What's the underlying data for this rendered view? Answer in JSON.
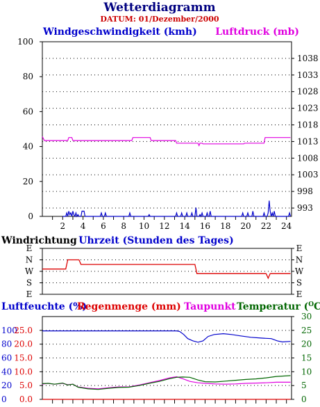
{
  "header": {
    "title": "Wetterdiagramm",
    "datum": "DATUM: 01/Dezember/2000"
  },
  "colors": {
    "title": "#000080",
    "datum": "#cc0000",
    "wind": "#0000cc",
    "pressure": "#e000e0",
    "direction": "#dd0000",
    "humidity": "#0000cc",
    "rain": "#dd0000",
    "dewpoint": "#e000e0",
    "temperature": "#006600"
  },
  "chart_data": [
    {
      "type": "line",
      "labels": {
        "left": "Windgeschwindigkeit (kmh)",
        "right": "Luftdruck (mb)"
      },
      "x_ticks": [
        "2",
        "4",
        "6",
        "8",
        "10",
        "12",
        "14",
        "16",
        "18",
        "20",
        "22",
        "24"
      ],
      "xlim": [
        0,
        24.5
      ],
      "ylim_left": [
        0,
        100
      ],
      "y_ticks_left": [
        "0",
        "20",
        "40",
        "60",
        "80",
        "100"
      ],
      "ylim_right": [
        990.5,
        1043
      ],
      "y_ticks_right": [
        "993",
        "998",
        "1003",
        "1008",
        "1013",
        "1018",
        "1023",
        "1028",
        "1033",
        "1038"
      ],
      "series": [
        {
          "name": "Windgeschwindigkeit",
          "axis": "left",
          "points": [
            [
              2,
              0
            ],
            [
              2.3,
              0
            ],
            [
              2.4,
              2
            ],
            [
              2.5,
              0
            ],
            [
              2.6,
              3
            ],
            [
              2.7,
              1
            ],
            [
              2.8,
              2
            ],
            [
              2.9,
              0
            ],
            [
              3.0,
              3
            ],
            [
              3.1,
              1
            ],
            [
              3.2,
              0
            ],
            [
              3.3,
              2
            ],
            [
              3.4,
              0
            ],
            [
              3.5,
              1
            ],
            [
              3.6,
              0
            ],
            [
              3.8,
              0
            ],
            [
              3.9,
              3
            ],
            [
              4.0,
              3
            ],
            [
              4.1,
              3
            ],
            [
              4.2,
              0
            ],
            [
              5.7,
              0
            ],
            [
              5.8,
              2
            ],
            [
              5.9,
              0
            ],
            [
              6.1,
              0
            ],
            [
              6.2,
              2
            ],
            [
              6.3,
              0
            ],
            [
              8.5,
              0
            ],
            [
              8.6,
              2
            ],
            [
              8.7,
              0
            ],
            [
              10.4,
              0
            ],
            [
              10.5,
              1
            ],
            [
              10.6,
              0
            ],
            [
              13.1,
              0
            ],
            [
              13.2,
              2
            ],
            [
              13.3,
              0
            ],
            [
              13.6,
              0
            ],
            [
              13.7,
              2
            ],
            [
              13.8,
              0
            ],
            [
              14.1,
              0
            ],
            [
              14.2,
              2
            ],
            [
              14.3,
              0
            ],
            [
              14.6,
              0
            ],
            [
              14.7,
              2
            ],
            [
              14.8,
              0
            ],
            [
              15.0,
              0
            ],
            [
              15.1,
              5
            ],
            [
              15.2,
              0
            ],
            [
              15.4,
              0
            ],
            [
              15.5,
              1
            ],
            [
              15.6,
              0
            ],
            [
              15.7,
              2
            ],
            [
              15.8,
              0
            ],
            [
              16.1,
              0
            ],
            [
              16.2,
              2
            ],
            [
              16.3,
              0
            ],
            [
              16.4,
              0
            ],
            [
              16.5,
              3
            ],
            [
              16.6,
              0
            ],
            [
              19.6,
              0
            ],
            [
              19.7,
              2
            ],
            [
              19.8,
              0
            ],
            [
              20.1,
              0
            ],
            [
              20.2,
              2
            ],
            [
              20.3,
              0
            ],
            [
              20.6,
              0
            ],
            [
              20.7,
              3
            ],
            [
              20.8,
              0
            ],
            [
              21.7,
              0
            ],
            [
              21.8,
              2
            ],
            [
              21.9,
              0
            ],
            [
              22.1,
              0
            ],
            [
              22.2,
              2
            ],
            [
              22.3,
              9
            ],
            [
              22.4,
              3
            ],
            [
              22.5,
              0
            ],
            [
              22.6,
              2
            ],
            [
              22.7,
              0
            ],
            [
              22.8,
              3
            ],
            [
              22.9,
              0
            ],
            [
              24.2,
              0
            ],
            [
              24.3,
              2
            ],
            [
              24.4,
              0
            ]
          ]
        },
        {
          "name": "Luftdruck",
          "axis": "right",
          "points": [
            [
              0,
              1014.5
            ],
            [
              0.2,
              1013.3
            ],
            [
              2.5,
              1013.3
            ],
            [
              2.6,
              1014.2
            ],
            [
              2.9,
              1014.2
            ],
            [
              3.0,
              1013.3
            ],
            [
              8.8,
              1013.3
            ],
            [
              8.9,
              1014.2
            ],
            [
              10.6,
              1014.2
            ],
            [
              10.7,
              1013.3
            ],
            [
              13.1,
              1013.3
            ],
            [
              13.2,
              1012.5
            ],
            [
              15.3,
              1012.5
            ],
            [
              15.4,
              1011.8
            ],
            [
              15.5,
              1012.5
            ],
            [
              15.7,
              1012.5
            ],
            [
              15.8,
              1012.3
            ],
            [
              19.8,
              1012.3
            ],
            [
              19.9,
              1012.5
            ],
            [
              21.8,
              1012.5
            ],
            [
              21.9,
              1014.2
            ],
            [
              24.4,
              1014.2
            ]
          ]
        }
      ]
    },
    {
      "type": "line",
      "labels": {
        "left": "Windrichtung",
        "center": "Uhrzeit (Stunden des Tages)"
      },
      "direction_labels": [
        "E",
        "N",
        "W",
        "S",
        "E"
      ],
      "series": [
        {
          "name": "Windrichtung",
          "points": [
            [
              0,
              2.2
            ],
            [
              2.3,
              2.2
            ],
            [
              2.5,
              3
            ],
            [
              3.6,
              3
            ],
            [
              3.8,
              2.6
            ],
            [
              15.0,
              2.6
            ],
            [
              15.2,
              1.8
            ],
            [
              22.0,
              1.8
            ],
            [
              22.2,
              1.4
            ],
            [
              22.4,
              1.8
            ],
            [
              24.4,
              1.8
            ]
          ]
        }
      ]
    },
    {
      "type": "line",
      "labels": {
        "humidity": "Luftfeuchte (%)",
        "rain": "Regenmenge (mm)",
        "dewpoint": "Taupunkt",
        "temperature": "Temperatur (",
        "temperature_unit": "O",
        "temperature_end": "C)"
      },
      "ylim": [
        0,
        30
      ],
      "y_ticks_humidity": [
        "0",
        "20",
        "40",
        "60",
        "80",
        "100"
      ],
      "y_ticks_rain": [
        "0.0",
        "5.0",
        "10.0",
        "15.0",
        "20.0",
        "25.0"
      ],
      "y_ticks_temperature": [
        "0",
        "5",
        "10",
        "15",
        "20",
        "25",
        "30"
      ],
      "series": [
        {
          "name": "Luftfeuchte",
          "points": [
            [
              0,
              24.8
            ],
            [
              13.2,
              24.8
            ],
            [
              13.5,
              24.6
            ],
            [
              13.9,
              23.5
            ],
            [
              14.3,
              22.0
            ],
            [
              14.8,
              21.2
            ],
            [
              15.3,
              20.7
            ],
            [
              15.8,
              21.2
            ],
            [
              16.3,
              22.8
            ],
            [
              16.9,
              23.5
            ],
            [
              17.8,
              23.8
            ],
            [
              18.6,
              23.5
            ],
            [
              19.5,
              23.0
            ],
            [
              20.5,
              22.5
            ],
            [
              21.5,
              22.2
            ],
            [
              22.5,
              22.0
            ],
            [
              23.1,
              21.2
            ],
            [
              23.6,
              20.8
            ],
            [
              24.4,
              21.0
            ]
          ]
        },
        {
          "name": "Taupunkt",
          "points": [
            [
              0,
              5.5
            ],
            [
              0.5,
              5.8
            ],
            [
              1.2,
              5.5
            ],
            [
              2.0,
              5.8
            ],
            [
              2.5,
              5.3
            ],
            [
              3.0,
              5.5
            ],
            [
              3.5,
              4.5
            ],
            [
              4.5,
              4.0
            ],
            [
              5.5,
              3.8
            ],
            [
              6.5,
              4.2
            ],
            [
              7.5,
              4.5
            ],
            [
              8.5,
              4.5
            ],
            [
              9.5,
              5.2
            ],
            [
              10.5,
              6.0
            ],
            [
              11.5,
              6.8
            ],
            [
              12.5,
              7.8
            ],
            [
              13.2,
              8.2
            ],
            [
              13.8,
              7.5
            ],
            [
              14.5,
              6.5
            ],
            [
              15.3,
              6.0
            ],
            [
              16.0,
              5.8
            ],
            [
              17.0,
              5.6
            ],
            [
              18.0,
              5.5
            ],
            [
              19.0,
              5.6
            ],
            [
              20.0,
              5.8
            ],
            [
              21.0,
              5.9
            ],
            [
              22.0,
              6.0
            ],
            [
              23.0,
              6.2
            ],
            [
              24.4,
              6.2
            ]
          ]
        },
        {
          "name": "Temperatur",
          "points": [
            [
              0,
              5.7
            ],
            [
              0.6,
              5.8
            ],
            [
              1.2,
              5.5
            ],
            [
              2.0,
              5.9
            ],
            [
              2.5,
              5.2
            ],
            [
              3.0,
              5.5
            ],
            [
              3.5,
              4.4
            ],
            [
              4.5,
              3.8
            ],
            [
              5.5,
              3.6
            ],
            [
              6.5,
              4.0
            ],
            [
              7.5,
              4.3
            ],
            [
              8.5,
              4.4
            ],
            [
              9.5,
              5.0
            ],
            [
              10.5,
              5.8
            ],
            [
              11.5,
              6.5
            ],
            [
              12.5,
              7.5
            ],
            [
              13.2,
              8.0
            ],
            [
              13.8,
              8.1
            ],
            [
              14.5,
              8.0
            ],
            [
              15.3,
              7.0
            ],
            [
              16.0,
              6.4
            ],
            [
              17.0,
              6.3
            ],
            [
              18.0,
              6.6
            ],
            [
              19.0,
              6.9
            ],
            [
              20.0,
              7.2
            ],
            [
              21.0,
              7.4
            ],
            [
              22.0,
              7.8
            ],
            [
              23.0,
              8.3
            ],
            [
              24.4,
              8.6
            ]
          ]
        },
        {
          "name": "Regenmenge",
          "points": [
            [
              0,
              0
            ],
            [
              24.4,
              0
            ]
          ]
        }
      ]
    }
  ]
}
